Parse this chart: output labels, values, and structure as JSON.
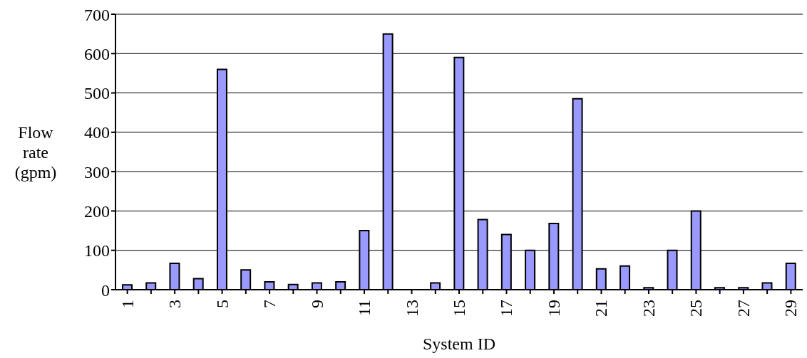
{
  "chart_data": {
    "type": "bar",
    "xlabel": "System ID",
    "ylabel": "Flow rate (gpm)",
    "categories": [
      "1",
      null,
      "3",
      null,
      "5",
      null,
      "7",
      null,
      "9",
      null,
      "11",
      null,
      "13",
      null,
      "15",
      null,
      "17",
      null,
      "19",
      null,
      "21",
      null,
      "23",
      null,
      "25",
      null,
      "27",
      null,
      "29"
    ],
    "values": [
      12,
      17,
      67,
      28,
      560,
      50,
      20,
      13,
      17,
      20,
      150,
      650,
      0,
      17,
      590,
      178,
      140,
      100,
      168,
      485,
      53,
      60,
      5,
      100,
      200,
      5,
      5,
      17,
      67
    ],
    "color": "#9999ff",
    "ylim": [
      0,
      700
    ],
    "yticks": [
      0,
      100,
      200,
      300,
      400,
      500,
      600,
      700
    ],
    "grid": "y"
  }
}
